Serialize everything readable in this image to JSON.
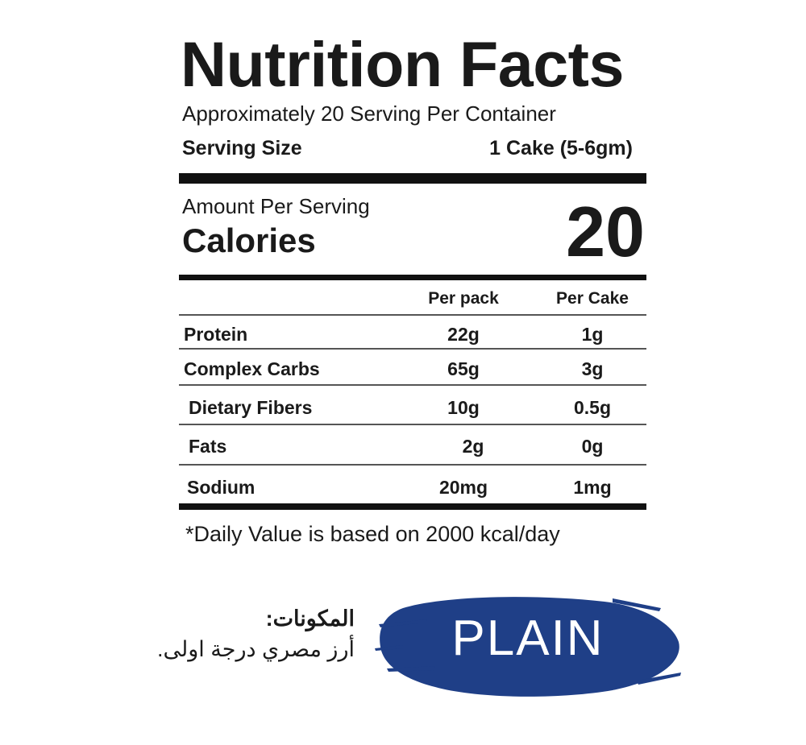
{
  "label": {
    "title": "Nutrition Facts",
    "servings_per_container": "Approximately 20 Serving Per Container",
    "serving_size_label": "Serving Size",
    "serving_size_value": "1 Cake (5-6gm)",
    "amount_per_serving": "Amount Per Serving",
    "calories_label": "Calories",
    "calories_value": "20",
    "columns": [
      "Per pack",
      "Per Cake"
    ],
    "rows": [
      {
        "name": "Protein",
        "per_pack": "22g",
        "per_cake": "1g"
      },
      {
        "name": "Complex Carbs",
        "per_pack": "65g",
        "per_cake": "3g"
      },
      {
        "name": "Dietary Fibers",
        "per_pack": "10g",
        "per_cake": "0.5g"
      },
      {
        "name": "Fats",
        "per_pack": "2g",
        "per_cake": "0g"
      },
      {
        "name": "Sodium",
        "per_pack": "20mg",
        "per_cake": "1mg"
      }
    ],
    "footnote": "*Daily Value is based on 2000 kcal/day"
  },
  "ingredients": {
    "heading": "المكونات:",
    "text": "أرز مصري درجة اولى."
  },
  "flavor": {
    "name": "PLAIN",
    "brush_color": "#1f3f87"
  }
}
